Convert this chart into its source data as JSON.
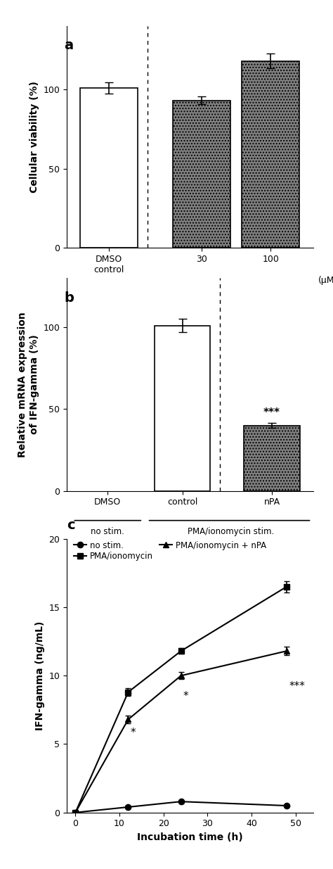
{
  "panel_a": {
    "values": [
      101,
      93,
      118
    ],
    "errors": [
      3.5,
      2.5,
      4.5
    ],
    "bar_colors": [
      "#ffffff",
      "#808080",
      "#808080"
    ],
    "bar_hatches": [
      "",
      "....",
      "...."
    ],
    "ylabel": "Cellular viability (%)",
    "ylim": [
      0,
      140
    ],
    "yticks": [
      0,
      50,
      100
    ],
    "dashed_x": 0.5,
    "xlabel_uM": "(μM)",
    "panel_label": "a"
  },
  "panel_b": {
    "values": [
      0,
      101,
      40
    ],
    "errors": [
      0,
      4.0,
      1.5
    ],
    "bar_colors": [
      "#ffffff",
      "#ffffff",
      "#808080"
    ],
    "ylabel": "Relative mRNA expression\nof IFN-gamma (%)",
    "ylim": [
      0,
      130
    ],
    "yticks": [
      0,
      50,
      100
    ],
    "dashed_x": 1.5,
    "panel_label": "b",
    "sig_label": "***"
  },
  "panel_c": {
    "time_points": [
      0,
      12,
      24,
      48
    ],
    "no_stim_values": [
      0,
      0.4,
      0.8,
      0.5
    ],
    "no_stim_errors": [
      0,
      0.05,
      0.08,
      0.05
    ],
    "pma_values": [
      0,
      8.8,
      11.8,
      16.5
    ],
    "pma_errors": [
      0,
      0.3,
      0.2,
      0.4
    ],
    "pma_npa_values": [
      0,
      6.8,
      10.0,
      11.8
    ],
    "pma_npa_errors": [
      0,
      0.3,
      0.25,
      0.3
    ],
    "ylabel": "IFN-gamma (ng/mL)",
    "xlabel": "Incubation time (h)",
    "ylim": [
      0,
      20
    ],
    "yticks": [
      0,
      5,
      10,
      15,
      20
    ],
    "xticks": [
      0,
      10,
      20,
      30,
      40,
      50
    ],
    "panel_label": "c",
    "legend_nostim": "no stim.",
    "legend_pma": "PMA/ionomycin",
    "legend_pma_npa": "PMA/ionomycin + nPA",
    "sig_12h": "*",
    "sig_24h": "*",
    "sig_48h": "***"
  }
}
